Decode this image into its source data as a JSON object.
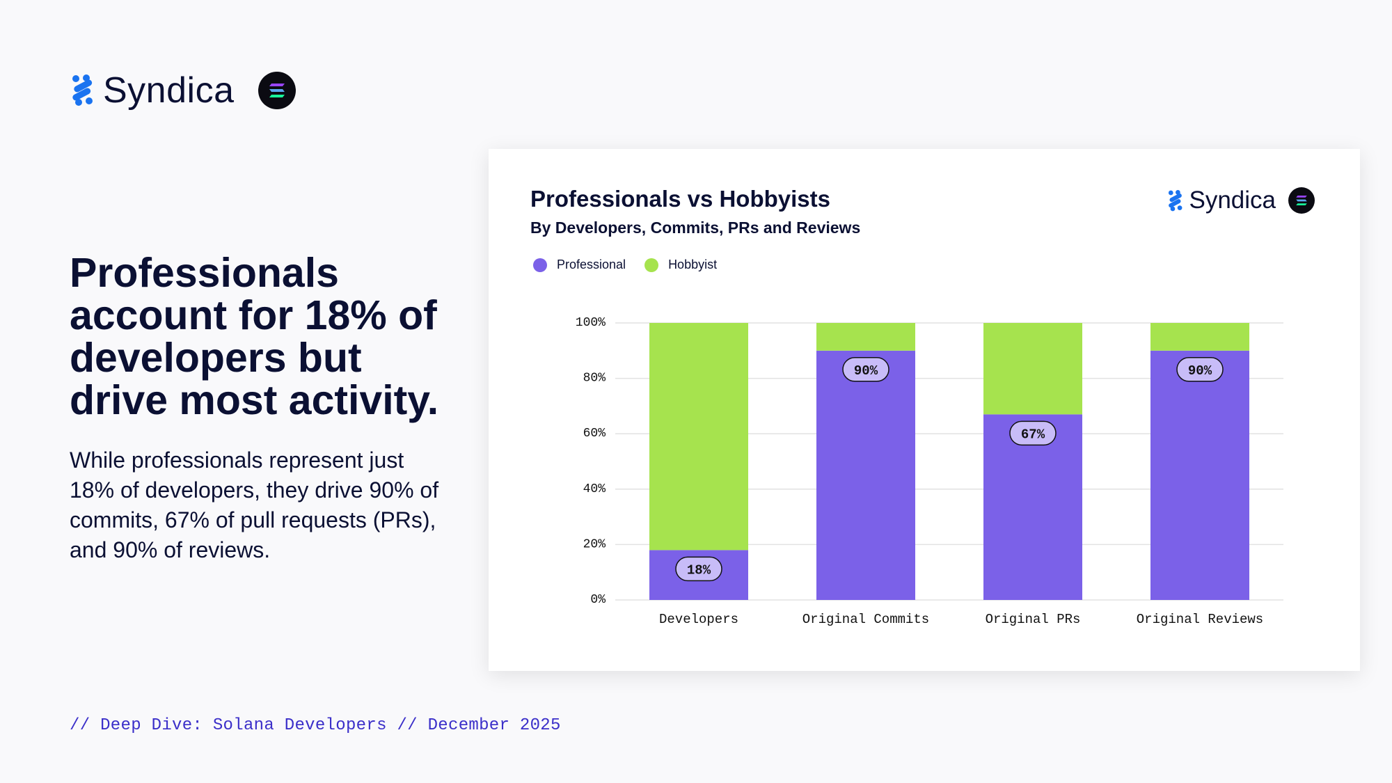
{
  "brand": {
    "name": "Syndica",
    "accent": "#1a73f0",
    "badge_bg": "#0b0b12"
  },
  "headline": "Professionals account for 18% of developers but drive most activity.",
  "body": "While professionals represent just 18% of developers, they drive 90% of commits, 67% of pull requests (PRs), and 90% of reviews.",
  "footer": "// Deep Dive: Solana Developers // December 2025",
  "chart_data": {
    "type": "bar",
    "stacked": true,
    "title": "Professionals vs Hobbyists",
    "subtitle": "By Developers, Commits, PRs and Reviews",
    "categories": [
      "Developers",
      "Original Commits",
      "Original PRs",
      "Original Reviews"
    ],
    "series": [
      {
        "name": "Professional",
        "color": "#7b61e8",
        "values": [
          18,
          90,
          67,
          90
        ]
      },
      {
        "name": "Hobbyist",
        "color": "#a6e34e",
        "values": [
          82,
          10,
          33,
          10
        ]
      }
    ],
    "data_labels": [
      "18%",
      "90%",
      "67%",
      "90%"
    ],
    "yticks": [
      "0%",
      "20%",
      "40%",
      "60%",
      "80%",
      "100%"
    ],
    "ylim": [
      0,
      100
    ],
    "grid": true,
    "legend_position": "top-left"
  }
}
